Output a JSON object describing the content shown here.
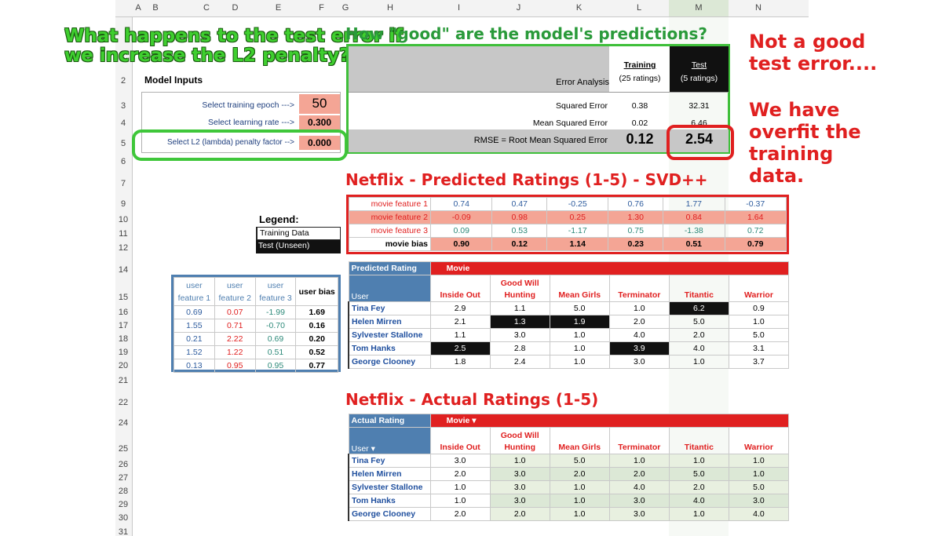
{
  "columns": [
    "A",
    "B",
    "C",
    "D",
    "E",
    "F",
    "G",
    "H",
    "I",
    "J",
    "K",
    "L",
    "M",
    "N"
  ],
  "rows": [
    "2",
    "3",
    "4",
    "5",
    "6",
    "7",
    "9",
    "10",
    "11",
    "12",
    "14",
    "15",
    "16",
    "17",
    "18",
    "19",
    "20",
    "21",
    "22",
    "24",
    "25",
    "26",
    "27",
    "28",
    "29",
    "30",
    "31"
  ],
  "callouts": {
    "l2_question": "What happens to the test error if we increase the L2 penalty?",
    "not_good": "Not a good test error....",
    "overfit": "We have overfit the training data."
  },
  "model_inputs": {
    "title": "Model Inputs",
    "epoch_label": "Select training epoch --->",
    "epoch_value": "50",
    "lr_label": "Select learning rate --->",
    "lr_value": "0.300",
    "l2_label": "Select L2 (lambda) penalty factor -->",
    "l2_value": "0.000"
  },
  "error_analysis": {
    "heading": "How \"good\" are the model's predictions?",
    "title": "Error Analysis",
    "training_hdr": "Training",
    "training_sub": "(25 ratings)",
    "test_hdr": "Test",
    "test_sub": "(5 ratings)",
    "sq_label": "Squared Error",
    "sq_train": "0.38",
    "sq_test": "32.31",
    "mse_label": "Mean Squared Error",
    "mse_train": "0.02",
    "mse_test": "6.46",
    "rmse_label": "RMSE = Root Mean Squared Error",
    "rmse_train": "0.12",
    "rmse_test": "2.54"
  },
  "legend": {
    "title": "Legend:",
    "training": "Training Data",
    "test": "Test (Unseen)"
  },
  "predicted": {
    "heading": "Netflix - Predicted Ratings (1-5) - SVD++",
    "movie_features": [
      {
        "label": "movie feature 1",
        "values": [
          "0.74",
          "0.47",
          "-0.25",
          "0.76",
          "1.77",
          "-0.37"
        ]
      },
      {
        "label": "movie feature 2",
        "values": [
          "-0.09",
          "0.98",
          "0.25",
          "1.30",
          "0.84",
          "1.64"
        ]
      },
      {
        "label": "movie feature 3",
        "values": [
          "0.09",
          "0.53",
          "-1.17",
          "0.75",
          "-1.38",
          "0.72"
        ]
      },
      {
        "label": "movie bias",
        "values": [
          "0.90",
          "0.12",
          "1.14",
          "0.23",
          "0.51",
          "0.79"
        ]
      }
    ],
    "corner": "Predicted Rating",
    "movie_hdr": "Movie",
    "user_hdr": "User",
    "movies": [
      "Inside Out",
      "Good Will Hunting",
      "Mean Girls",
      "Terminator",
      "Titantic",
      "Warrior"
    ],
    "users": [
      "Tina Fey",
      "Helen Mirren",
      "Sylvester Stallone",
      "Tom Hanks",
      "George Clooney"
    ],
    "ratings": [
      [
        "2.9",
        "1.1",
        "5.0",
        "1.0",
        "6.2",
        "0.9"
      ],
      [
        "2.1",
        "1.3",
        "1.9",
        "2.0",
        "5.0",
        "1.0"
      ],
      [
        "1.1",
        "3.0",
        "1.0",
        "4.0",
        "2.0",
        "5.0"
      ],
      [
        "2.5",
        "2.8",
        "1.0",
        "3.9",
        "4.0",
        "3.1"
      ],
      [
        "1.8",
        "2.4",
        "1.0",
        "3.0",
        "1.0",
        "3.7"
      ]
    ]
  },
  "user_features": {
    "headers": [
      "user feature 1",
      "user feature 2",
      "user feature 3",
      "user bias"
    ],
    "rows": [
      [
        "0.69",
        "0.07",
        "-1.99",
        "1.69"
      ],
      [
        "1.55",
        "0.71",
        "-0.70",
        "0.16"
      ],
      [
        "0.21",
        "2.22",
        "0.69",
        "0.20"
      ],
      [
        "1.52",
        "1.22",
        "0.51",
        "0.52"
      ],
      [
        "0.13",
        "0.95",
        "0.95",
        "0.77"
      ]
    ]
  },
  "actual": {
    "heading": "Netflix - Actual Ratings (1-5)",
    "corner": "Actual Rating",
    "movie_hdr": "Movie",
    "user_hdr": "User",
    "movies": [
      "Inside Out",
      "Good Will Hunting",
      "Mean Girls",
      "Terminator",
      "Titantic",
      "Warrior"
    ],
    "users": [
      "Tina Fey",
      "Helen Mirren",
      "Sylvester Stallone",
      "Tom Hanks",
      "George Clooney"
    ],
    "ratings": [
      [
        "3.0",
        "1.0",
        "5.0",
        "1.0",
        "1.0",
        "1.0"
      ],
      [
        "2.0",
        "3.0",
        "2.0",
        "2.0",
        "5.0",
        "1.0"
      ],
      [
        "1.0",
        "3.0",
        "1.0",
        "4.0",
        "2.0",
        "5.0"
      ],
      [
        "1.0",
        "3.0",
        "1.0",
        "3.0",
        "4.0",
        "3.0"
      ],
      [
        "2.0",
        "2.0",
        "1.0",
        "3.0",
        "1.0",
        "4.0"
      ]
    ]
  },
  "colors": {
    "accent_red": "#e02020",
    "accent_green": "#2a9a3a",
    "header_blue": "#4f7fb0",
    "salmon": "#f4a595"
  }
}
